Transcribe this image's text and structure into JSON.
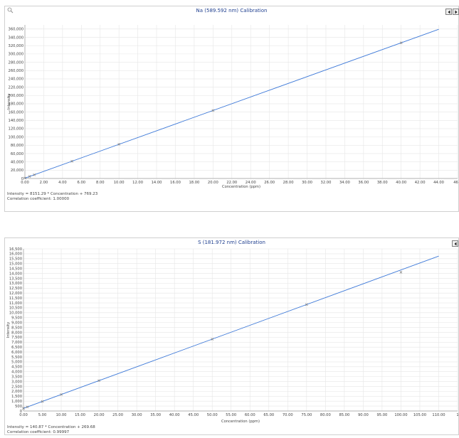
{
  "charts": [
    {
      "title": "Na (589.592 nm) Calibration",
      "equation": "Intensity = 8151.29 * Concentration + 769.23",
      "correlation": "Correlation coefficient: 1.00000"
    },
    {
      "title": "S (181.972 nm) Calibration",
      "equation": "Intensity = 140.87 * Concentration + 269.68",
      "correlation": "Correlation coefficient: 0.99997"
    }
  ],
  "chart_data": [
    {
      "type": "scatter",
      "title": "Na (589.592 nm) Calibration",
      "xlabel": "Concentration (ppm)",
      "ylabel": "Intensity",
      "xlim": [
        0,
        46
      ],
      "ylim": [
        0,
        370000
      ],
      "x_ticks": [
        "0.00",
        "2.00",
        "4.00",
        "6.00",
        "8.00",
        "10.00",
        "12.00",
        "14.00",
        "16.00",
        "18.00",
        "20.00",
        "22.00",
        "24.00",
        "26.00",
        "28.00",
        "30.00",
        "32.00",
        "34.00",
        "36.00",
        "38.00",
        "40.00",
        "42.00",
        "44.00",
        "46.0"
      ],
      "x_tick_values": [
        0,
        2,
        4,
        6,
        8,
        10,
        12,
        14,
        16,
        18,
        20,
        22,
        24,
        26,
        28,
        30,
        32,
        34,
        36,
        38,
        40,
        42,
        44,
        46
      ],
      "y_ticks": [
        "0",
        "20,000",
        "40,000",
        "60,000",
        "80,000",
        "100,000",
        "120,000",
        "140,000",
        "160,000",
        "180,000",
        "200,000",
        "220,000",
        "240,000",
        "260,000",
        "280,000",
        "300,000",
        "320,000",
        "340,000",
        "360,000"
      ],
      "y_tick_values": [
        0,
        20000,
        40000,
        60000,
        80000,
        100000,
        120000,
        140000,
        160000,
        180000,
        200000,
        220000,
        240000,
        260000,
        280000,
        300000,
        320000,
        340000,
        360000
      ],
      "points": [
        {
          "x": 0,
          "y": 900
        },
        {
          "x": 0.5,
          "y": 4900
        },
        {
          "x": 1,
          "y": 8900
        },
        {
          "x": 5,
          "y": 41500
        },
        {
          "x": 10,
          "y": 82300
        },
        {
          "x": 20,
          "y": 163800
        },
        {
          "x": 40,
          "y": 326800
        }
      ],
      "fit_line": {
        "slope": 8151.29,
        "intercept": 769.23,
        "x_range": [
          0,
          44
        ]
      },
      "grid": true,
      "marker_color": "#7f7f7f",
      "line_color": "#3c78d8"
    },
    {
      "type": "scatter",
      "title": "S (181.972 nm) Calibration",
      "xlabel": "Concentration (ppm)",
      "ylabel": "Intensity",
      "xlim": [
        0,
        115
      ],
      "ylim": [
        0,
        16500
      ],
      "x_ticks": [
        "0.00",
        "5.00",
        "10.00",
        "15.00",
        "20.00",
        "25.00",
        "30.00",
        "35.00",
        "40.00",
        "45.00",
        "50.00",
        "55.00",
        "60.00",
        "65.00",
        "70.00",
        "75.00",
        "80.00",
        "85.00",
        "90.00",
        "95.00",
        "100.00",
        "105.00",
        "110.00",
        "1"
      ],
      "x_tick_values": [
        0,
        5,
        10,
        15,
        20,
        25,
        30,
        35,
        40,
        45,
        50,
        55,
        60,
        65,
        70,
        75,
        80,
        85,
        90,
        95,
        100,
        105,
        110,
        115
      ],
      "y_ticks": [
        "0",
        "500",
        "1,000",
        "1,500",
        "2,000",
        "2,500",
        "3,000",
        "3,500",
        "4,000",
        "4,500",
        "5,000",
        "5,500",
        "6,000",
        "6,500",
        "7,000",
        "7,500",
        "8,000",
        "8,500",
        "9,000",
        "9,500",
        "10,000",
        "10,500",
        "11,000",
        "11,500",
        "12,000",
        "12,500",
        "13,000",
        "13,500",
        "14,000",
        "14,500",
        "15,000",
        "15,500",
        "16,000",
        "16,500"
      ],
      "y_tick_values": [
        0,
        500,
        1000,
        1500,
        2000,
        2500,
        3000,
        3500,
        4000,
        4500,
        5000,
        5500,
        6000,
        6500,
        7000,
        7500,
        8000,
        8500,
        9000,
        9500,
        10000,
        10500,
        11000,
        11500,
        12000,
        12500,
        13000,
        13500,
        14000,
        14500,
        15000,
        15500,
        16000,
        16500
      ],
      "points": [
        {
          "x": 0,
          "y": 270
        },
        {
          "x": 1,
          "y": 410
        },
        {
          "x": 5,
          "y": 970
        },
        {
          "x": 10,
          "y": 1680
        },
        {
          "x": 20,
          "y": 3090
        },
        {
          "x": 50,
          "y": 7310
        },
        {
          "x": 75,
          "y": 10830
        },
        {
          "x": 100,
          "y": 14120
        }
      ],
      "fit_line": {
        "slope": 140.87,
        "intercept": 269.68,
        "x_range": [
          0,
          110
        ]
      },
      "grid": true,
      "marker_color": "#7f7f7f",
      "line_color": "#3c78d8"
    }
  ]
}
